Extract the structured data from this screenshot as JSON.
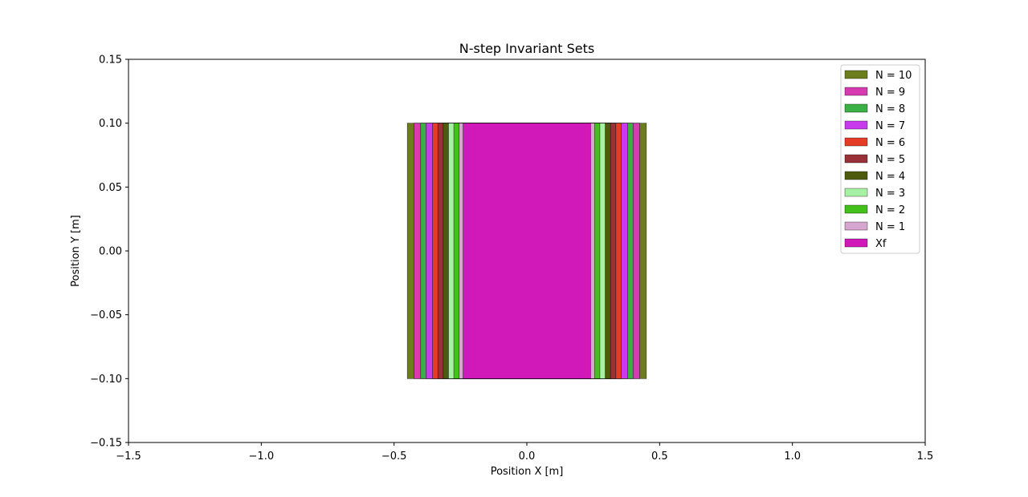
{
  "chart_data": {
    "type": "area",
    "title": "N-step Invariant Sets",
    "xlabel": "Position X [m]",
    "ylabel": "Position Y [m]",
    "xlim": [
      -1.5,
      1.5
    ],
    "ylim": [
      -0.15,
      0.15
    ],
    "xticks": [
      -1.5,
      -1.0,
      -0.5,
      0.0,
      0.5,
      1.0,
      1.5
    ],
    "yticks": [
      -0.15,
      -0.1,
      -0.05,
      0.0,
      0.05,
      0.1,
      0.15
    ],
    "xtick_labels": [
      "−1.5",
      "−1.0",
      "−0.5",
      "0.0",
      "0.5",
      "1.0",
      "1.5"
    ],
    "ytick_labels": [
      "−0.15",
      "−0.10",
      "−0.05",
      "0.00",
      "0.05",
      "0.10",
      "0.15"
    ],
    "grid": false,
    "legend_position": "top-right",
    "series": [
      {
        "name": "N = 10",
        "color": "#6b7d1c",
        "x_range": [
          -0.45,
          0.45
        ],
        "y_range": [
          -0.1,
          0.1
        ]
      },
      {
        "name": "N = 9",
        "color": "#d63caf",
        "x_range": [
          -0.425,
          0.425
        ],
        "y_range": [
          -0.1,
          0.1
        ]
      },
      {
        "name": "N = 8",
        "color": "#3bb044",
        "x_range": [
          -0.4,
          0.4
        ],
        "y_range": [
          -0.1,
          0.1
        ]
      },
      {
        "name": "N = 7",
        "color": "#c83bec",
        "x_range": [
          -0.38,
          0.38
        ],
        "y_range": [
          -0.1,
          0.1
        ]
      },
      {
        "name": "N = 6",
        "color": "#e53c26",
        "x_range": [
          -0.355,
          0.355
        ],
        "y_range": [
          -0.1,
          0.1
        ]
      },
      {
        "name": "N = 5",
        "color": "#983238",
        "x_range": [
          -0.335,
          0.335
        ],
        "y_range": [
          -0.1,
          0.1
        ]
      },
      {
        "name": "N = 4",
        "color": "#4e5a0e",
        "x_range": [
          -0.315,
          0.315
        ],
        "y_range": [
          -0.1,
          0.1
        ]
      },
      {
        "name": "N = 3",
        "color": "#a8f0a4",
        "x_range": [
          -0.295,
          0.295
        ],
        "y_range": [
          -0.1,
          0.1
        ]
      },
      {
        "name": "N = 2",
        "color": "#43c01a",
        "x_range": [
          -0.275,
          0.275
        ],
        "y_range": [
          -0.1,
          0.1
        ]
      },
      {
        "name": "N = 1",
        "color": "#d6a6cf",
        "x_range": [
          -0.255,
          0.255
        ],
        "y_range": [
          -0.1,
          0.1
        ]
      },
      {
        "name": "Xf",
        "color": "#d019b8",
        "x_range": [
          -0.24,
          0.24
        ],
        "y_range": [
          -0.1,
          0.1
        ]
      }
    ]
  }
}
